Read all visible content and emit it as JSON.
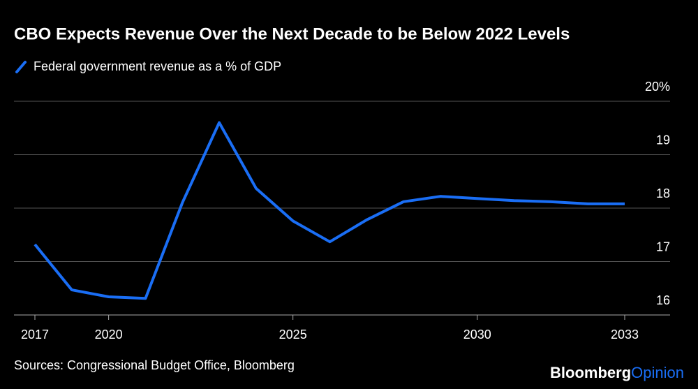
{
  "chart_data": {
    "type": "line",
    "title": "CBO Expects Revenue Over the Next Decade to be Below 2022 Levels",
    "categories": [
      "2017",
      null,
      "2020",
      null,
      null,
      null,
      null,
      "2025",
      null,
      null,
      null,
      null,
      "2030",
      null,
      null,
      null,
      "2033"
    ],
    "series": [
      {
        "name": "Federal government revenue as a % of GDP",
        "color": "#1a6ef5",
        "values": [
          17.32,
          16.47,
          16.34,
          16.31,
          18.1,
          19.6,
          18.37,
          17.76,
          17.37,
          17.78,
          18.12,
          18.22,
          18.18,
          18.14,
          18.12,
          18.08,
          18.08
        ]
      }
    ],
    "ylim": [
      16,
      20
    ],
    "yticks": [
      16,
      17,
      18,
      19,
      {
        "value": 20,
        "label": "20%"
      }
    ],
    "grid": true
  },
  "footer": {
    "source": "Sources: Congressional Budget Office, Bloomberg",
    "brand": [
      "Bloomberg",
      "Opinion"
    ]
  }
}
